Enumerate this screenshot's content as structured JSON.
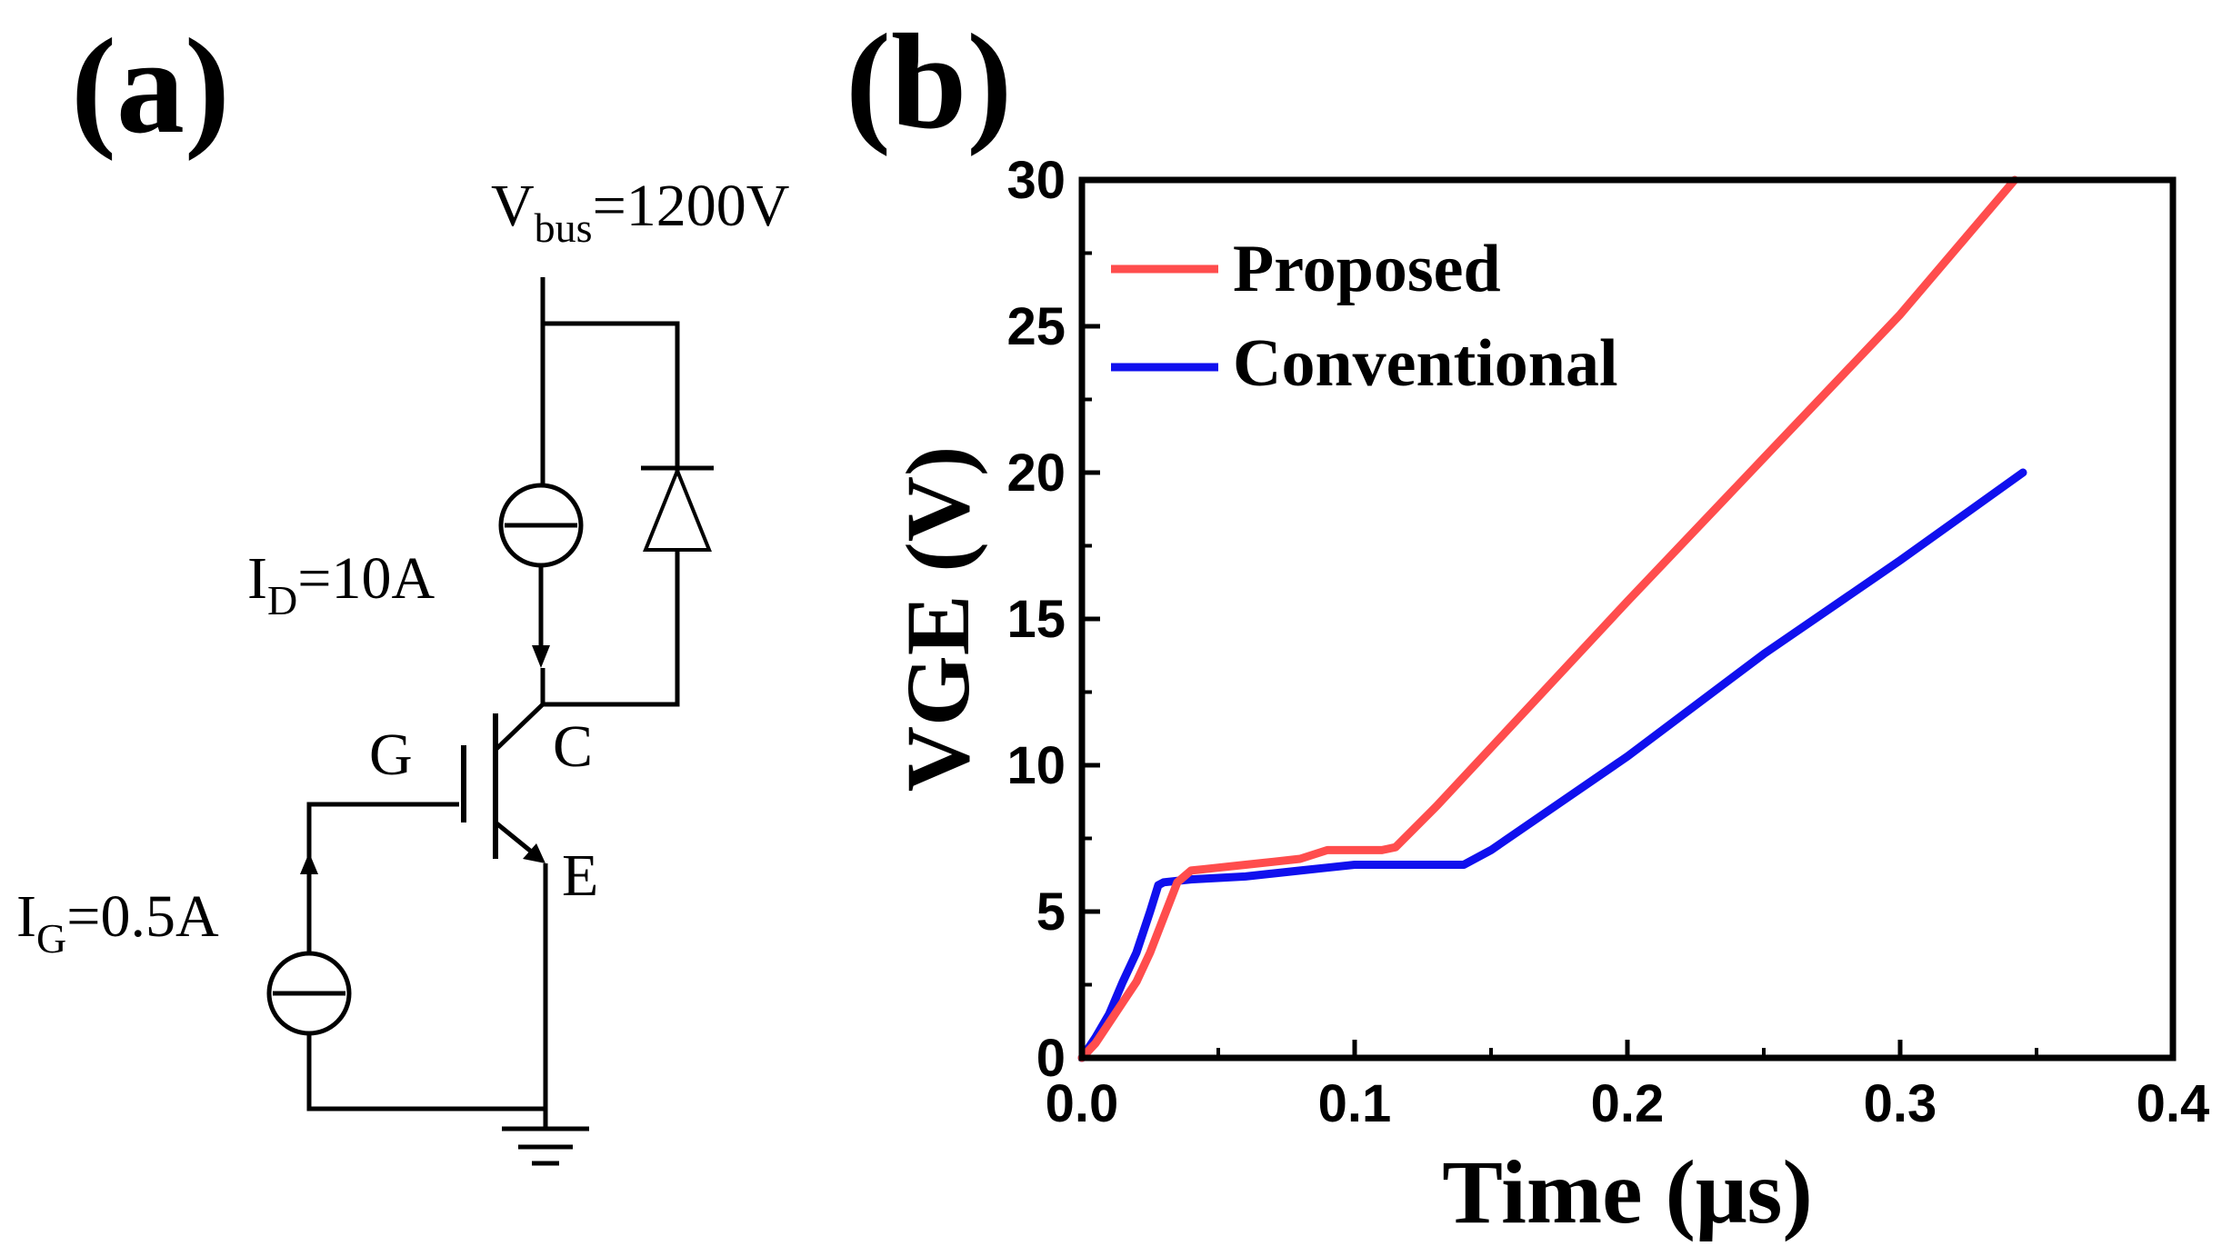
{
  "panel_a": {
    "label": "(a)",
    "vbus": {
      "main": "V",
      "sub": "bus",
      "value": "=1200V"
    },
    "id_source": {
      "main": "I",
      "sub": "D",
      "value": "=10A"
    },
    "ig_source": {
      "main": "I",
      "sub": "G",
      "value": "=0.5A"
    },
    "terminal_g": "G",
    "terminal_c": "C",
    "terminal_e": "E"
  },
  "panel_b": {
    "label": "(b)"
  },
  "chart_data": {
    "type": "line",
    "title": "",
    "xlabel": "Time (μs)",
    "ylabel": "VGE (V)",
    "xlim": [
      0.0,
      0.4
    ],
    "ylim": [
      0,
      30
    ],
    "xticks": [
      "0.0",
      "0.1",
      "0.2",
      "0.3",
      "0.4"
    ],
    "yticks": [
      "0",
      "5",
      "10",
      "15",
      "20",
      "25",
      "30"
    ],
    "grid": false,
    "legend_position": "top-left",
    "series": [
      {
        "name": "Proposed",
        "color": "#ff4d4d",
        "x": [
          0.0,
          0.005,
          0.01,
          0.015,
          0.02,
          0.025,
          0.03,
          0.035,
          0.04,
          0.045,
          0.05,
          0.06,
          0.07,
          0.08,
          0.09,
          0.1,
          0.11,
          0.115,
          0.13,
          0.15,
          0.2,
          0.25,
          0.3,
          0.342
        ],
        "y": [
          0.0,
          0.5,
          1.2,
          1.9,
          2.6,
          3.6,
          4.8,
          6.0,
          6.4,
          6.45,
          6.5,
          6.6,
          6.7,
          6.8,
          7.1,
          7.1,
          7.1,
          7.2,
          8.6,
          10.6,
          15.6,
          20.5,
          25.4,
          30.0
        ]
      },
      {
        "name": "Conventional",
        "color": "#1010ee",
        "x": [
          0.0,
          0.005,
          0.01,
          0.015,
          0.02,
          0.025,
          0.028,
          0.03,
          0.04,
          0.05,
          0.06,
          0.07,
          0.08,
          0.09,
          0.1,
          0.12,
          0.14,
          0.15,
          0.2,
          0.25,
          0.3,
          0.345
        ],
        "y": [
          0.0,
          0.7,
          1.5,
          2.6,
          3.6,
          5.0,
          5.9,
          6.0,
          6.1,
          6.15,
          6.2,
          6.3,
          6.4,
          6.5,
          6.6,
          6.6,
          6.6,
          7.1,
          10.3,
          13.8,
          17.0,
          20.0
        ]
      }
    ]
  }
}
